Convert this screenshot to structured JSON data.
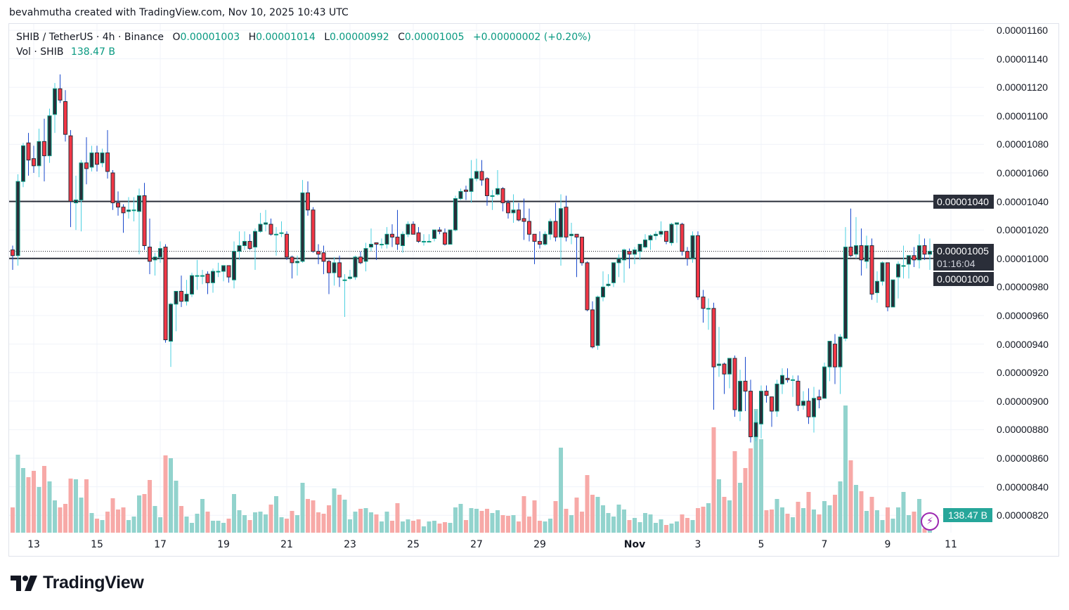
{
  "credit": "bevahmutha created with TradingView.com, Nov 10, 2025 10:43 UTC",
  "legend": {
    "symbol": "SHIB / TetherUS · 4h · Binance",
    "o_label": "O",
    "o": "0.00001003",
    "h_label": "H",
    "h": "0.00001014",
    "l_label": "L",
    "l": "0.00000992",
    "c_label": "C",
    "c": "0.00001005",
    "change": "+0.00000002 (+0.20%)",
    "vol_label": "Vol · SHIB",
    "vol": "138.47 B"
  },
  "price_labels": {
    "level_upper": "0.00001040",
    "current": "0.00001005",
    "countdown": "01:16:04",
    "level_lower": "0.00001000",
    "volume": "138.47 B"
  },
  "brand": "TradingView",
  "icons": {
    "alert": "lightning-icon",
    "logo": "tradingview-logo"
  },
  "colors": {
    "up_border": "#089981",
    "up_body": "#2a2e39",
    "up_wick": "#4dd0e1",
    "down_body": "#f23645",
    "down_border": "#2a2e39",
    "down_wick": "#1848cc",
    "vol_up": "#92d3cd",
    "vol_down": "#f7a9a7",
    "line": "#2a2e39",
    "volume_label": "#26a69a"
  },
  "chart_data": {
    "type": "candlestick",
    "interval": "4h",
    "ylim": [
      8.1e-06,
      1.17e-05
    ],
    "grid": true,
    "y_ticks": [
      "0.00001160",
      "0.00001140",
      "0.00001120",
      "0.00001100",
      "0.00001080",
      "0.00001060",
      "0.00001040",
      "0.00001020",
      "0.00001000",
      "0.00000980",
      "0.00000960",
      "0.00000940",
      "0.00000920",
      "0.00000900",
      "0.00000880",
      "0.00000860",
      "0.00000840",
      "0.00000820"
    ],
    "x_ticks": [
      "13",
      "15",
      "17",
      "19",
      "21",
      "23",
      "25",
      "27",
      "29",
      "Nov",
      "3",
      "5",
      "7",
      "9",
      "11"
    ],
    "horizontal_lines": [
      1.04e-05,
      1e-05
    ],
    "current_price": 1.005e-05,
    "volume_unit": "B",
    "candles_ohlc": [
      [
        1.006e-05,
        1.009e-05,
        9.92e-06,
        1.002e-05
      ],
      [
        1.002e-05,
        1.059e-05,
        9.95e-06,
        1.054e-05
      ],
      [
        1.054e-05,
        1.081e-05,
        1.05e-05,
        1.079e-05
      ],
      [
        1.081e-05,
        1.088e-05,
        1.058e-05,
        1.069e-05
      ],
      [
        1.07e-05,
        1.079e-05,
        1.06e-05,
        1.065e-05
      ],
      [
        1.065e-05,
        1.091e-05,
        1.057e-05,
        1.082e-05
      ],
      [
        1.082e-05,
        1.098e-05,
        1.054e-05,
        1.072e-05
      ],
      [
        1.072e-05,
        1.105e-05,
        1.067e-05,
        1.1e-05
      ],
      [
        1.101e-05,
        1.123e-05,
        1.088e-05,
        1.119e-05
      ],
      [
        1.119e-05,
        1.129e-05,
        1.109e-05,
        1.111e-05
      ],
      [
        1.11e-05,
        1.118e-05,
        1.082e-05,
        1.087e-05
      ],
      [
        1.086e-05,
        1.09e-05,
        1.022e-05,
        1.04e-05
      ],
      [
        1.039e-05,
        1.058e-05,
        1.02e-05,
        1.041e-05
      ],
      [
        1.041e-05,
        1.069e-05,
        1.019e-05,
        1.067e-05
      ],
      [
        1.067e-05,
        1.085e-05,
        1.052e-05,
        1.063e-05
      ],
      [
        1.064e-05,
        1.079e-05,
        1.061e-05,
        1.074e-05
      ],
      [
        1.074e-05,
        1.079e-05,
        1.061e-05,
        1.066e-05
      ],
      [
        1.067e-05,
        1.077e-05,
        1.064e-05,
        1.074e-05
      ],
      [
        1.074e-05,
        1.09e-05,
        1.056e-05,
        1.061e-05
      ],
      [
        1.06e-05,
        1.062e-05,
        1.034e-05,
        1.039e-05
      ],
      [
        1.039e-05,
        1.047e-05,
        1.03e-05,
        1.036e-05
      ],
      [
        1.036e-05,
        1.038e-05,
        1.018e-05,
        1.032e-05
      ],
      [
        1.033e-05,
        1.043e-05,
        1.028e-05,
        1.034e-05
      ],
      [
        1.034e-05,
        1.043e-05,
        1.026e-05,
        1.034e-05
      ],
      [
        1.033e-05,
        1.049e-05,
        1.003e-05,
        1.044e-05
      ],
      [
        1.044e-05,
        1.053e-05,
        1.006e-05,
        1.009e-05
      ],
      [
        1.008e-05,
        1.028e-05,
        9.89e-06,
        9.98e-06
      ],
      [
        9.99e-06,
        1.004e-05,
        9.88e-06,
        1.001e-05
      ],
      [
        1.001e-05,
        1.012e-05,
        9.97e-06,
        1.007e-05
      ],
      [
        1.008e-05,
        1.01e-05,
        9.41e-06,
        9.43e-06
      ],
      [
        9.42e-06,
        9.69e-06,
        9.24e-06,
        9.68e-06
      ],
      [
        9.68e-06,
        9.77e-06,
        9.49e-06,
        9.77e-06
      ],
      [
        9.77e-06,
        9.88e-06,
        9.66e-06,
        9.7e-06
      ],
      [
        9.7e-06,
        9.85e-06,
        9.67e-06,
        9.75e-06
      ],
      [
        9.75e-06,
        9.9e-06,
        9.73e-06,
        9.88e-06
      ],
      [
        9.88e-06,
        9.99e-06,
        9.78e-06,
        9.88e-06
      ],
      [
        9.88e-06,
        9.92e-06,
        9.82e-06,
        9.88e-06
      ],
      [
        9.89e-06,
        9.91e-06,
        9.75e-06,
        9.83e-06
      ],
      [
        9.83e-06,
        9.93e-06,
        9.76e-06,
        9.91e-06
      ],
      [
        9.91e-06,
        9.97e-06,
        9.87e-06,
        9.91e-06
      ],
      [
        9.91e-06,
        9.95e-06,
        9.84e-06,
        9.95e-06
      ],
      [
        9.95e-06,
        9.95e-06,
        9.83e-06,
        9.87e-06
      ],
      [
        9.85e-06,
        1.012e-05,
        9.79e-06,
        1.005e-05
      ],
      [
        1.005e-05,
        1.019e-05,
        9.99e-06,
        1.009e-05
      ],
      [
        1.009e-05,
        1.019e-05,
        1.006e-05,
        1.012e-05
      ],
      [
        1.012e-05,
        1.017e-05,
        1.006e-05,
        1.007e-05
      ],
      [
        1.008e-05,
        1.021e-05,
        9.92e-06,
        1.019e-05
      ],
      [
        1.019e-05,
        1.032e-05,
        1.018e-05,
        1.024e-05
      ],
      [
        1.024e-05,
        1.034e-05,
        1.019e-05,
        1.025e-05
      ],
      [
        1.024e-05,
        1.028e-05,
        1.016e-05,
        1.017e-05
      ],
      [
        1.017e-05,
        1.022e-05,
        1.002e-05,
        1.017e-05
      ],
      [
        1.018e-05,
        1.026e-05,
        1.015e-05,
        1.018e-05
      ],
      [
        1.017e-05,
        1.019e-05,
        9.99e-06,
        1.001e-05
      ],
      [
        1.001e-05,
        1.002e-05,
        9.86e-06,
        9.97e-06
      ],
      [
        9.97e-06,
        1.002e-05,
        9.88e-06,
        9.98e-06
      ],
      [
        9.98e-06,
        1.055e-05,
        9.97e-06,
        1.046e-05
      ],
      [
        1.046e-05,
        1.054e-05,
        1.03e-05,
        1.034e-05
      ],
      [
        1.034e-05,
        1.036e-05,
        1.004e-05,
        1.005e-05
      ],
      [
        1.005e-05,
        1.01e-05,
        9.96e-06,
        1.003e-05
      ],
      [
        1.004e-05,
        1.009e-05,
        9.89e-06,
        9.98e-06
      ],
      [
        9.98e-06,
        9.99e-06,
        9.75e-06,
        9.9e-06
      ],
      [
        9.9e-06,
        1.001e-05,
        9.81e-06,
        9.97e-06
      ],
      [
        9.97e-06,
        1.002e-05,
        9.8e-06,
        9.87e-06
      ],
      [
        9.85e-06,
        9.89e-06,
        9.59e-06,
        9.85e-06
      ],
      [
        9.86e-06,
        9.92e-06,
        9.85e-06,
        9.87e-06
      ],
      [
        9.87e-06,
        1.002e-05,
        9.85e-06,
        1.001e-05
      ],
      [
        1.001e-05,
        1.005e-05,
        9.96e-06,
        9.97e-06
      ],
      [
        9.98e-06,
        1.011e-05,
        9.91e-06,
        1.007e-05
      ],
      [
        1.008e-05,
        1.021e-05,
        1.005e-05,
        1.01e-05
      ],
      [
        1.011e-05,
        1.011e-05,
        9.99e-06,
        1.01e-05
      ],
      [
        1.01e-05,
        1.014e-05,
        1.007e-05,
        1.01e-05
      ],
      [
        1.01e-05,
        1.022e-05,
        1.007e-05,
        1.017e-05
      ],
      [
        1.017e-05,
        1.024e-05,
        1.008e-05,
        1.015e-05
      ],
      [
        1.015e-05,
        1.034e-05,
        1.006e-05,
        1.01e-05
      ],
      [
        1.009e-05,
        1.019e-05,
        1.004e-05,
        1.017e-05
      ],
      [
        1.017e-05,
        1.026e-05,
        1.015e-05,
        1.024e-05
      ],
      [
        1.024e-05,
        1.026e-05,
        1.017e-05,
        1.017e-05
      ],
      [
        1.018e-05,
        1.022e-05,
        1.011e-05,
        1.012e-05
      ],
      [
        1.012e-05,
        1.017e-05,
        1.009e-05,
        1.012e-05
      ],
      [
        1.012e-05,
        1.017e-05,
        1.012e-05,
        1.012e-05
      ],
      [
        1.014e-05,
        1.02e-05,
        1.012e-05,
        1.02e-05
      ],
      [
        1.02e-05,
        1.022e-05,
        1.017e-05,
        1.019e-05
      ],
      [
        1.018e-05,
        1.021e-05,
        1.009e-05,
        1.01e-05
      ],
      [
        1.01e-05,
        1.02e-05,
        1.01e-05,
        1.02e-05
      ],
      [
        1.02e-05,
        1.044e-05,
        1.019e-05,
        1.042e-05
      ],
      [
        1.042e-05,
        1.049e-05,
        1.041e-05,
        1.047e-05
      ],
      [
        1.048e-05,
        1.051e-05,
        1.041e-05,
        1.047e-05
      ],
      [
        1.047e-05,
        1.069e-05,
        1.039e-05,
        1.056e-05
      ],
      [
        1.056e-05,
        1.07e-05,
        1.054e-05,
        1.061e-05
      ],
      [
        1.061e-05,
        1.069e-05,
        1.051e-05,
        1.055e-05
      ],
      [
        1.056e-05,
        1.057e-05,
        1.037e-05,
        1.044e-05
      ],
      [
        1.044e-05,
        1.048e-05,
        1.034e-05,
        1.044e-05
      ],
      [
        1.045e-05,
        1.062e-05,
        1.044e-05,
        1.049e-05
      ],
      [
        1.049e-05,
        1.05e-05,
        1.033e-05,
        1.039e-05
      ],
      [
        1.039e-05,
        1.041e-05,
        1.028e-05,
        1.032e-05
      ],
      [
        1.032e-05,
        1.045e-05,
        1.025e-05,
        1.034e-05
      ],
      [
        1.034e-05,
        1.039e-05,
        1.026e-05,
        1.027e-05
      ],
      [
        1.028e-05,
        1.042e-05,
        1.013e-05,
        1.026e-05
      ],
      [
        1.026e-05,
        1.035e-05,
        1.012e-05,
        1.017e-05
      ],
      [
        1.017e-05,
        1.017e-05,
        9.96e-06,
        1.012e-05
      ],
      [
        1.012e-05,
        1.019e-05,
        1.007e-05,
        1.01e-05
      ],
      [
        1.01e-05,
        1.019e-05,
        1.009e-05,
        1.017e-05
      ],
      [
        1.017e-05,
        1.028e-05,
        1.013e-05,
        1.026e-05
      ],
      [
        1.026e-05,
        1.039e-05,
        1.012e-05,
        1.015e-05
      ],
      [
        1.015e-05,
        1.045e-05,
        9.95e-06,
        1.035e-05
      ],
      [
        1.036e-05,
        1.044e-05,
        1.012e-05,
        1.015e-05
      ],
      [
        1.016e-05,
        1.025e-05,
        1.01e-05,
        1.017e-05
      ],
      [
        1.017e-05,
        1.017e-05,
        9.87e-06,
        1.015e-05
      ],
      [
        1.015e-05,
        1.015e-05,
        9.95e-06,
        9.97e-06
      ],
      [
        9.97e-06,
        9.98e-06,
        9.63e-06,
        9.64e-06
      ],
      [
        9.64e-06,
        9.7e-06,
        9.37e-06,
        9.38e-06
      ],
      [
        9.39e-06,
        9.74e-06,
        9.36e-06,
        9.73e-06
      ],
      [
        9.73e-06,
        9.91e-06,
        9.7e-06,
        9.8e-06
      ],
      [
        9.81e-06,
        9.89e-06,
        9.8e-06,
        9.82e-06
      ],
      [
        9.83e-06,
        9.97e-06,
        9.8e-06,
        9.97e-06
      ],
      [
        9.97e-06,
        1.003e-05,
        9.87e-06,
        1e-05
      ],
      [
        9.99e-06,
        1.007e-05,
        9.83e-06,
        1.006e-05
      ],
      [
        1.005e-05,
        1.007e-05,
        9.93e-06,
        1.003e-05
      ],
      [
        1.003e-05,
        1.008e-05,
        9.96e-06,
        1.006e-05
      ],
      [
        1.005e-05,
        1.01e-05,
        9.99e-06,
        1.01e-05
      ],
      [
        1.008e-05,
        1.017e-05,
        1.007e-05,
        1.013e-05
      ],
      [
        1.013e-05,
        1.017e-05,
        1.006e-05,
        1.016e-05
      ],
      [
        1.016e-05,
        1.019e-05,
        1.013e-05,
        1.017e-05
      ],
      [
        1.017e-05,
        1.026e-05,
        1.015e-05,
        1.019e-05
      ],
      [
        1.019e-05,
        1.019e-05,
        1.01e-05,
        1.012e-05
      ],
      [
        1.011e-05,
        1.025e-05,
        1.009e-05,
        1.024e-05
      ],
      [
        1.024e-05,
        1.025e-05,
        1.011e-05,
        1.025e-05
      ],
      [
        1.024e-05,
        1.025e-05,
        1.002e-05,
        1.005e-05
      ],
      [
        1.005e-05,
        1.008e-05,
        9.95e-06,
        1e-05
      ],
      [
        1e-05,
        1.019e-05,
        9.97e-06,
        1.016e-05
      ],
      [
        1.016e-05,
        1.019e-05,
        9.71e-06,
        9.73e-06
      ],
      [
        9.73e-06,
        9.78e-06,
        9.55e-06,
        9.65e-06
      ],
      [
        9.65e-06,
        9.72e-06,
        9.5e-06,
        9.65e-06
      ],
      [
        9.65e-06,
        9.69e-06,
        8.94e-06,
        9.24e-06
      ],
      [
        9.25e-06,
        9.52e-06,
        9.17e-06,
        9.26e-06
      ],
      [
        9.26e-06,
        9.27e-06,
        9.05e-06,
        9.19e-06
      ],
      [
        9.19e-06,
        9.3e-06,
        9.09e-06,
        9.3e-06
      ],
      [
        9.3e-06,
        9.32e-06,
        8.89e-06,
        8.94e-06
      ],
      [
        8.93e-06,
        9.22e-06,
        8.86e-06,
        9.14e-06
      ],
      [
        9.14e-06,
        9.31e-06,
        8.93e-06,
        9.07e-06
      ],
      [
        9.07e-06,
        9.15e-06,
        8.71e-06,
        8.75e-06
      ],
      [
        8.75e-06,
        8.93e-06,
        8.72e-06,
        8.85e-06
      ],
      [
        8.84e-06,
        9.11e-06,
        8.74e-06,
        9.07e-06
      ],
      [
        9.07e-06,
        9.11e-06,
        8.99e-06,
        9.04e-06
      ],
      [
        9.03e-06,
        9.03e-06,
        8.82e-06,
        8.93e-06
      ],
      [
        8.93e-06,
        9.15e-06,
        8.89e-06,
        9.12e-06
      ],
      [
        9.12e-06,
        9.23e-06,
        9.05e-06,
        9.18e-06
      ],
      [
        9.16e-06,
        9.23e-06,
        9.13e-06,
        9.15e-06
      ],
      [
        9.15e-06,
        9.18e-06,
        9.03e-06,
        9.15e-06
      ],
      [
        9.14e-06,
        9.18e-06,
        8.93e-06,
        8.97e-06
      ],
      [
        8.97e-06,
        9.07e-06,
        8.94e-06,
        9e-06
      ],
      [
        9e-06,
        9.09e-06,
        8.84e-06,
        8.89e-06
      ],
      [
        8.89e-06,
        9.1e-06,
        8.78e-06,
        9.02e-06
      ],
      [
        9.03e-06,
        9.08e-06,
        8.95e-06,
        9.01e-06
      ],
      [
        9.02e-06,
        9.27e-06,
        9.02e-06,
        9.24e-06
      ],
      [
        9.24e-06,
        9.42e-06,
        9.14e-06,
        9.42e-06
      ],
      [
        9.4e-06,
        9.47e-06,
        9.12e-06,
        9.24e-06
      ],
      [
        9.24e-06,
        9.47e-06,
        9.05e-06,
        9.45e-06
      ],
      [
        9.44e-06,
        1.022e-05,
        9.42e-06,
        1.008e-05
      ],
      [
        1.008e-05,
        1.035e-05,
        1.001e-05,
        1.002e-05
      ],
      [
        1.003e-05,
        1.029e-05,
        1e-05,
        1.009e-05
      ],
      [
        1.009e-05,
        1.021e-05,
        9.88e-06,
        9.99e-06
      ],
      [
        9.98e-06,
        1.016e-05,
        9.93e-06,
        1.009e-05
      ],
      [
        1.009e-05,
        1.014e-05,
        9.71e-06,
        9.75e-06
      ],
      [
        9.76e-06,
        9.91e-06,
        9.69e-06,
        9.84e-06
      ],
      [
        9.84e-06,
        9.98e-06,
        9.81e-06,
        9.97e-06
      ],
      [
        9.97e-06,
        9.97e-06,
        9.63e-06,
        9.66e-06
      ],
      [
        9.66e-06,
        9.85e-06,
        9.66e-06,
        9.85e-06
      ],
      [
        9.87e-06,
        9.98e-06,
        9.72e-06,
        9.96e-06
      ],
      [
        9.95e-06,
        1.009e-05,
        9.86e-06,
        9.95e-06
      ],
      [
        9.96e-06,
        1.002e-05,
        9.86e-06,
        1.002e-05
      ],
      [
        1.002e-05,
        1.008e-05,
        9.94e-06,
        9.99e-06
      ],
      [
        9.99e-06,
        1.017e-05,
        9.93e-06,
        1.009e-05
      ],
      [
        1.009e-05,
        1.014e-05,
        9.99e-06,
        1.003e-05
      ],
      [
        1.003e-05,
        1.014e-05,
        9.92e-06,
        1.005e-05
      ]
    ],
    "volume": [
      1656,
      5106,
      4232,
      3634,
      4048,
      2990,
      4370,
      3358,
      2116,
      1656,
      1886,
      3542,
      3496,
      2300,
      3496,
      1288,
      920,
      828,
      1380,
      2254,
      1518,
      1656,
      828,
      1058,
      2438,
      2530,
      3450,
      1748,
      1012,
      5060,
      4876,
      3404,
      1748,
      1058,
      644,
      1242,
      2208,
      1380,
      782,
      782,
      644,
      920,
      2530,
      1472,
      1150,
      828,
      1334,
      1380,
      1196,
      1840,
      2392,
      1012,
      920,
      1426,
      1150,
      3266,
      2208,
      2116,
      1334,
      1242,
      1794,
      2898,
      2484,
      2162,
      874,
      1380,
      1564,
      1610,
      1334,
      1196,
      736,
      1380,
      782,
      1932,
      736,
      874,
      782,
      874,
      414,
      736,
      782,
      598,
      690,
      644,
      1656,
      1886,
      828,
      1610,
      1564,
      1426,
      1564,
      1288,
      1472,
      1150,
      1104,
      1150,
      736,
      2392,
      1058,
      2116,
      782,
      736,
      920,
      2070,
      5566,
      1564,
      1150,
      2300,
      1380,
      3772,
      2484,
      2346,
      1794,
      1288,
      1058,
      1840,
      1518,
      828,
      966,
      690,
      1288,
      1196,
      644,
      874,
      506,
      598,
      736,
      1196,
      966,
      828,
      1610,
      1702,
      1932,
      6900,
      3496,
      2346,
      2116,
      5336,
      3266,
      4232,
      5520,
      8096,
      6118,
      1472,
      1518,
      2208,
      1656,
      1242,
      1012,
      2024,
      1610,
      2668,
      1518,
      1196,
      2070,
      1794,
      2484,
      3358,
      8326,
      4738,
      3128,
      2714,
      1426,
      2346,
      1472,
      828,
      1656,
      920,
      1656,
      2668,
      1150,
      1380,
      2208,
      276,
      138.47
    ]
  }
}
